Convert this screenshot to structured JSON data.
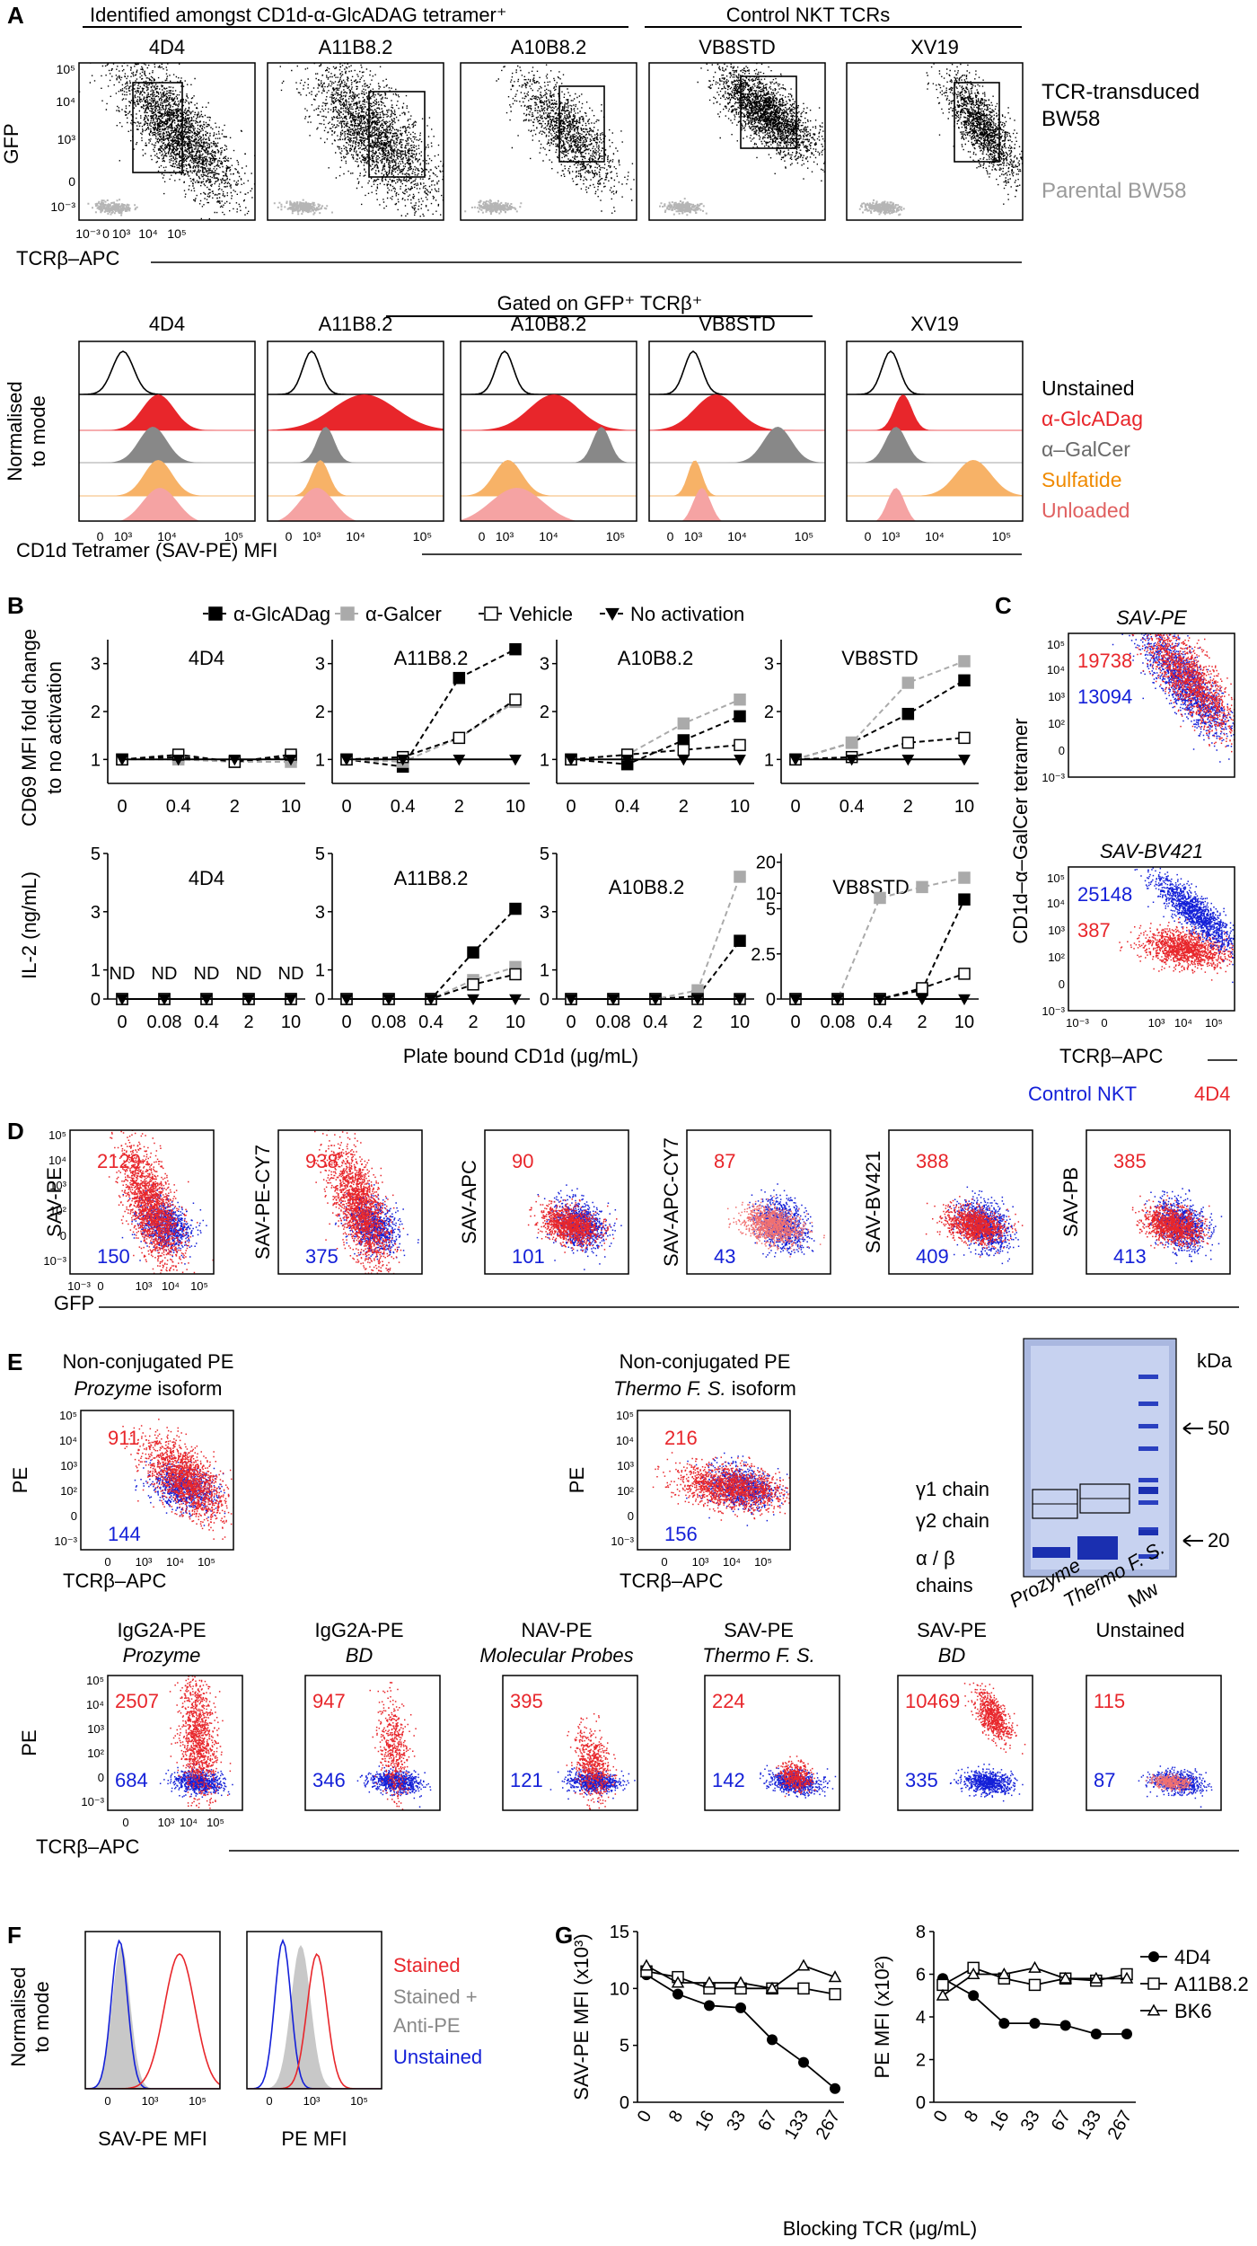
{
  "colors": {
    "red": "#e8262b",
    "blue": "#1420d8",
    "gray": "#9a9a9a",
    "orange": "#f08a00",
    "black": "#000000",
    "lightred": "#f08c8c",
    "darkgray": "#6a6a6a"
  },
  "panelA": {
    "letter": "A",
    "header_left": "Identified amongst CD1d-α-GlcADAG tetramer⁺",
    "header_right": "Control NKT TCRs",
    "clones": [
      "4D4",
      "A11B8.2",
      "A10B8.2",
      "VB8STD",
      "XV19"
    ],
    "ylabel": "GFP",
    "xlabel": "TCRβ–APC",
    "y_ticks": [
      "10⁵",
      "10⁴",
      "10³",
      "0",
      "10⁻³"
    ],
    "x_ticks": [
      "10⁻³",
      "0",
      "10³",
      "10⁴",
      "10⁵"
    ],
    "legend_black": "TCR-transduced BW58",
    "legend_black_line1": "TCR-transduced",
    "legend_black_line2": "BW58",
    "legend_gray": "Parental BW58",
    "gated_title": "Gated on GFP⁺ TCRβ⁺",
    "hist_ylabel_line1": "Normalised",
    "hist_ylabel_line2": "to mode",
    "hist_xlabel": "CD1d Tetramer (SAV-PE) MFI",
    "hist_x_ticks": [
      "0",
      "10³",
      "10⁴",
      "10⁵"
    ],
    "hist_legend": [
      "Unstained",
      "α-GlcADag",
      "α–GalCer",
      "Sulfatide",
      "Unloaded"
    ]
  },
  "panelB": {
    "letter": "B",
    "legend": [
      "α-GlcADag",
      "α-Galcer",
      "Vehicle",
      "No activation"
    ],
    "ylabel_top_line1": "CD69 MFI fold change",
    "ylabel_top_line2": "to no activation",
    "ylabel_bottom": "IL-2 (ng/mL)",
    "xlabel": "Plate bound CD1d (μg/mL)",
    "x_cd69": [
      "0",
      "0.4",
      "2",
      "10"
    ],
    "x_il2": [
      "0",
      "0.08",
      "0.4",
      "2",
      "10"
    ],
    "nd_label": "ND",
    "chart_data": [
      {
        "type": "line",
        "title": "4D4",
        "measure": "CD69 fold change",
        "categories": [
          "0",
          "0.4",
          "2",
          "10"
        ],
        "ylim": [
          0.5,
          3.5
        ],
        "series": [
          {
            "name": "α-GlcADag",
            "values": [
              1.0,
              1.05,
              0.95,
              1.05
            ]
          },
          {
            "name": "α-Galcer",
            "values": [
              1.0,
              1.0,
              0.95,
              0.95
            ]
          },
          {
            "name": "Vehicle",
            "values": [
              1.0,
              1.1,
              0.95,
              1.1
            ]
          },
          {
            "name": "No activation",
            "values": [
              1.0,
              1.0,
              1.0,
              1.0
            ]
          }
        ]
      },
      {
        "type": "line",
        "title": "A11B8.2",
        "measure": "CD69 fold change",
        "categories": [
          "0",
          "0.4",
          "2",
          "10"
        ],
        "ylim": [
          0.5,
          3.5
        ],
        "series": [
          {
            "name": "α-GlcADag",
            "values": [
              1.0,
              0.85,
              2.7,
              3.3
            ]
          },
          {
            "name": "α-Galcer",
            "values": [
              1.0,
              0.95,
              1.45,
              2.2
            ]
          },
          {
            "name": "Vehicle",
            "values": [
              1.0,
              1.05,
              1.45,
              2.25
            ]
          },
          {
            "name": "No activation",
            "values": [
              1.0,
              1.0,
              1.0,
              1.0
            ]
          }
        ]
      },
      {
        "type": "line",
        "title": "A10B8.2",
        "measure": "CD69 fold change",
        "categories": [
          "0",
          "0.4",
          "2",
          "10"
        ],
        "ylim": [
          0.5,
          3.5
        ],
        "series": [
          {
            "name": "α-GlcADag",
            "values": [
              1.0,
              0.9,
              1.4,
              1.9
            ]
          },
          {
            "name": "α-Galcer",
            "values": [
              1.0,
              1.1,
              1.75,
              2.25
            ]
          },
          {
            "name": "Vehicle",
            "values": [
              1.0,
              1.1,
              1.2,
              1.3
            ]
          },
          {
            "name": "No activation",
            "values": [
              1.0,
              1.0,
              1.0,
              1.0
            ]
          }
        ]
      },
      {
        "type": "line",
        "title": "VB8STD",
        "measure": "CD69 fold change",
        "categories": [
          "0",
          "0.4",
          "2",
          "10"
        ],
        "ylim": [
          0.5,
          3.5
        ],
        "series": [
          {
            "name": "α-GlcADag",
            "values": [
              1.0,
              1.35,
              1.95,
              2.65
            ]
          },
          {
            "name": "α-Galcer",
            "values": [
              1.0,
              1.35,
              2.6,
              3.05
            ]
          },
          {
            "name": "Vehicle",
            "values": [
              1.0,
              1.05,
              1.35,
              1.45
            ]
          },
          {
            "name": "No activation",
            "values": [
              1.0,
              1.0,
              1.0,
              1.0
            ]
          }
        ]
      },
      {
        "type": "line",
        "title": "4D4",
        "measure": "IL-2 ng/mL",
        "categories": [
          "0",
          "0.08",
          "0.4",
          "2",
          "10"
        ],
        "ylim": [
          0,
          5
        ],
        "series": [
          {
            "name": "α-GlcADag",
            "values": [
              0,
              0,
              0,
              0,
              0
            ]
          },
          {
            "name": "α-Galcer",
            "values": [
              0,
              0,
              0,
              0,
              0
            ]
          },
          {
            "name": "Vehicle",
            "values": [
              0,
              0,
              0,
              0,
              0
            ]
          },
          {
            "name": "No activation",
            "values": [
              0,
              0,
              0,
              0,
              0
            ]
          }
        ]
      },
      {
        "type": "line",
        "title": "A11B8.2",
        "measure": "IL-2 ng/mL",
        "categories": [
          "0",
          "0.08",
          "0.4",
          "2",
          "10"
        ],
        "ylim": [
          0,
          5
        ],
        "series": [
          {
            "name": "α-GlcADag",
            "values": [
              0,
              0,
              0,
              1.6,
              3.1
            ]
          },
          {
            "name": "α-Galcer",
            "values": [
              0,
              0,
              0,
              0.65,
              1.1
            ]
          },
          {
            "name": "Vehicle",
            "values": [
              0,
              0,
              0,
              0.5,
              0.85
            ]
          },
          {
            "name": "No activation",
            "values": [
              0,
              0,
              0,
              0,
              0
            ]
          }
        ]
      },
      {
        "type": "line",
        "title": "A10B8.2",
        "measure": "IL-2 ng/mL",
        "categories": [
          "0",
          "0.08",
          "0.4",
          "2",
          "10"
        ],
        "ylim": [
          0,
          5
        ],
        "series": [
          {
            "name": "α-GlcADag",
            "values": [
              0,
              0,
              0,
              0.1,
              2.0
            ]
          },
          {
            "name": "α-Galcer",
            "values": [
              0,
              0,
              0,
              0.3,
              4.2
            ]
          },
          {
            "name": "Vehicle",
            "values": [
              0,
              0,
              0,
              0,
              0
            ]
          },
          {
            "name": "No activation",
            "values": [
              0,
              0,
              0,
              0,
              0
            ]
          }
        ]
      },
      {
        "type": "line",
        "title": "VB8STD",
        "measure": "IL-2 ng/mL",
        "categories": [
          "0",
          "0.08",
          "0.4",
          "2",
          "10"
        ],
        "ylim": [
          0,
          20
        ],
        "y_ticks": [
          "0",
          "2.5",
          "5",
          "10",
          "20"
        ],
        "series": [
          {
            "name": "α-GlcADag",
            "values": [
              0,
              0,
              0,
              0.5,
              8.0
            ]
          },
          {
            "name": "α-Galcer",
            "values": [
              0,
              0,
              8.5,
              12,
              15
            ]
          },
          {
            "name": "Vehicle",
            "values": [
              0,
              0,
              0,
              0.6,
              1.4
            ]
          },
          {
            "name": "No activation",
            "values": [
              0,
              0,
              0,
              0,
              0
            ]
          }
        ]
      }
    ]
  },
  "panelC": {
    "letter": "C",
    "titles": [
      "SAV-PE",
      "SAV-BV421"
    ],
    "values": [
      {
        "red": "19738",
        "blue": "13094"
      },
      {
        "red": "387",
        "blue": "25148"
      }
    ],
    "ylabel": "CD1d–α–GalCer tetramer",
    "xlabel": "TCRβ–APC",
    "legend_blue": "Control NKT",
    "legend_red": "4D4",
    "y_ticks": [
      "10⁵",
      "10⁴",
      "10³",
      "10²",
      "0",
      "10⁻³"
    ],
    "x_ticks": [
      "10⁻³",
      "0",
      "10³",
      "10⁴",
      "10⁵"
    ]
  },
  "panelD": {
    "letter": "D",
    "channels": [
      "SAV-PE",
      "SAV-PE-CY7",
      "SAV-APC",
      "SAV-APC-CY7",
      "SAV-BV421",
      "SAV-PB"
    ],
    "red_values": [
      "2129",
      "938",
      "90",
      "87",
      "388",
      "385"
    ],
    "blue_values": [
      "150",
      "375",
      "101",
      "43",
      "409",
      "413"
    ],
    "xlabel": "GFP"
  },
  "panelE": {
    "letter": "E",
    "top": [
      {
        "title_line1": "Non-conjugated PE",
        "title_line2_italic": "Prozyme",
        "title_line2_rest": " isoform",
        "red": "911",
        "blue": "144"
      },
      {
        "title_line1": "Non-conjugated PE",
        "title_line2_italic": "Thermo F. S.",
        "title_line2_rest": " isoform",
        "red": "216",
        "blue": "156"
      }
    ],
    "ylabel": "PE",
    "xlabel": "TCRβ–APC",
    "gel": {
      "kda_label": "kDa",
      "markers": [
        "50",
        "20"
      ],
      "chains": [
        "γ1 chain",
        "γ2 chain",
        "α / β",
        "chains"
      ],
      "lanes": [
        "Prozyme",
        "Thermo F. S.",
        "Mw"
      ]
    },
    "bottom": [
      {
        "name": "IgG2A-PE",
        "vendor": "Prozyme",
        "red": "2507",
        "blue": "684"
      },
      {
        "name": "IgG2A-PE",
        "vendor": "BD",
        "red": "947",
        "blue": "346"
      },
      {
        "name": "NAV-PE",
        "vendor": "Molecular Probes",
        "red": "395",
        "blue": "121"
      },
      {
        "name": "SAV-PE",
        "vendor": "Thermo F. S.",
        "red": "224",
        "blue": "142"
      },
      {
        "name": "SAV-PE",
        "vendor": "BD",
        "red": "10469",
        "blue": "335"
      },
      {
        "name": "Unstained",
        "vendor": "",
        "red": "115",
        "blue": "87"
      }
    ]
  },
  "panelF": {
    "letter": "F",
    "ylabel_line1": "Normalised",
    "ylabel_line2": "to mode",
    "xlabels": [
      "SAV-PE MFI",
      "PE MFI"
    ],
    "x_ticks": [
      "0",
      "10³",
      "10⁵"
    ],
    "legend": [
      "Stained",
      "Stained +",
      "Anti-PE",
      "Unstained"
    ]
  },
  "panelG": {
    "letter": "G",
    "legend": [
      "4D4",
      "A11B8.2",
      "BK6"
    ],
    "xlabel": "Blocking TCR (μg/mL)",
    "ylabel_left": "SAV-PE MFI (x10³)",
    "ylabel_right": "PE MFI (x10²)",
    "chart_data": [
      {
        "type": "line",
        "categories": [
          "0",
          "8",
          "16",
          "33",
          "67",
          "133",
          "267"
        ],
        "ylim": [
          0,
          15
        ],
        "y_ticks": [
          "0",
          "5",
          "10",
          "15"
        ],
        "series": [
          {
            "name": "4D4",
            "values": [
              11.2,
              9.5,
              8.5,
              8.3,
              5.5,
              3.5,
              1.2
            ]
          },
          {
            "name": "A11B8.2",
            "values": [
              11.5,
              11.0,
              10.0,
              10.0,
              10.0,
              10.0,
              9.5
            ]
          },
          {
            "name": "BK6",
            "values": [
              12.0,
              10.5,
              10.5,
              10.5,
              10.0,
              12.0,
              11.0
            ]
          }
        ]
      },
      {
        "type": "line",
        "categories": [
          "0",
          "8",
          "16",
          "33",
          "67",
          "133",
          "267"
        ],
        "ylim": [
          0,
          8
        ],
        "y_ticks": [
          "0",
          "2",
          "4",
          "6",
          "8"
        ],
        "series": [
          {
            "name": "4D4",
            "values": [
              5.8,
              5.0,
              3.7,
              3.7,
              3.6,
              3.2,
              3.2
            ]
          },
          {
            "name": "A11B8.2",
            "values": [
              5.5,
              6.3,
              5.8,
              5.5,
              5.8,
              5.7,
              6.0
            ]
          },
          {
            "name": "BK6",
            "values": [
              5.0,
              6.0,
              6.0,
              6.3,
              5.8,
              5.8,
              5.8
            ]
          }
        ]
      }
    ]
  }
}
